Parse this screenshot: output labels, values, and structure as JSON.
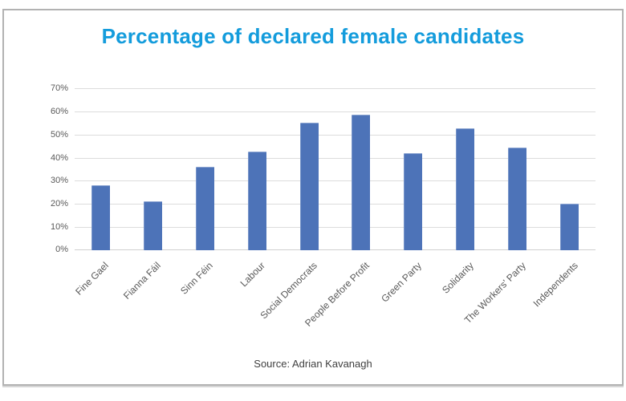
{
  "header": {
    "title": "Percentage of declared female candidates",
    "title_color": "#149cdc"
  },
  "footer": {
    "source_label": "Source: Adrian Kavanagh"
  },
  "chart_data": {
    "type": "bar",
    "title": "Percentage of declared female candidates",
    "categories": [
      "Fine Gael",
      "Fianna Fáil",
      "Sinn Féin",
      "Labour",
      "Social Democrats",
      "People Before Profit",
      "Green Party",
      "Solidarity",
      "The Workers' Party",
      "Independents"
    ],
    "values": [
      28,
      21,
      36,
      42.5,
      55,
      58.5,
      42,
      52.5,
      44.5,
      20
    ],
    "value_suffix": "%",
    "xlabel": "",
    "ylabel": "",
    "ylim": [
      0,
      70
    ],
    "ytick_step": 10,
    "ytick_labels": [
      "0%",
      "10%",
      "20%",
      "30%",
      "40%",
      "50%",
      "60%",
      "70%"
    ],
    "grid": true,
    "legend": false,
    "source": "Source: Adrian Kavanagh",
    "colors": {
      "bar": "#4d73b8",
      "gridline": "#dcdcdc",
      "axis_line": "#d0d0d0",
      "tick_label": "#595959",
      "x_label": "#595959",
      "frame_border": "#b2b2b2"
    }
  }
}
